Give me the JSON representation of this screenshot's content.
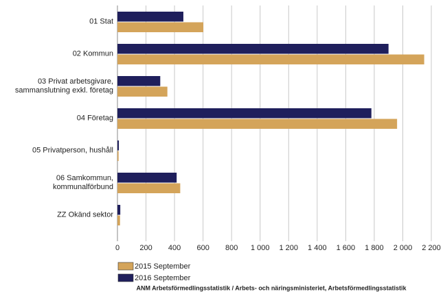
{
  "chart_data": {
    "type": "barh",
    "categories": [
      "01 Stat",
      "02 Kommun",
      "03 Privat arbetsgivare,\nsammanslutning exkl. företag",
      "04 Företag",
      "05 Privatperson, hushåll",
      "06 Samkommun,\nkommunalförbund",
      "ZZ Okänd sektor"
    ],
    "series": [
      {
        "name": "2016 September",
        "color": "#1f1f5c",
        "values": [
          462,
          1900,
          300,
          1780,
          10,
          415,
          20
        ]
      },
      {
        "name": "2015 September",
        "color": "#d4a45a",
        "values": [
          602,
          2150,
          350,
          1960,
          8,
          440,
          18
        ]
      }
    ],
    "xlim": [
      0,
      2200
    ],
    "xticks": [
      0,
      200,
      400,
      600,
      800,
      {
        "value": 1000,
        "label": "1 000"
      },
      {
        "value": 1200,
        "label": "1 200"
      },
      {
        "value": 1400,
        "label": "1 400"
      },
      {
        "value": 1600,
        "label": "1 600"
      },
      {
        "value": 1800,
        "label": "1 800"
      },
      {
        "value": 2000,
        "label": "2 000"
      },
      {
        "value": 2200,
        "label": "2 200"
      }
    ],
    "grid": true,
    "source": "ANM Arbetsförmedlingsstatistik / Arbets- och näringsministeriet, Arbetsförmedlingsstatistik"
  }
}
